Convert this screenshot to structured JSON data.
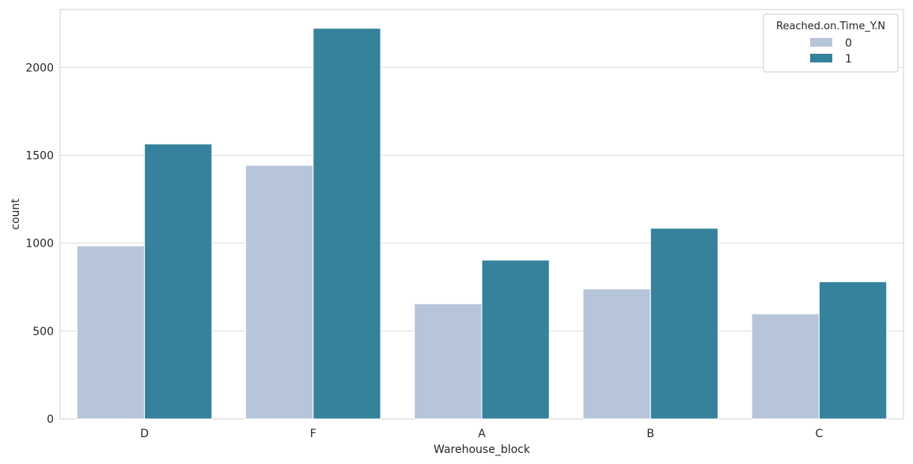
{
  "chart_data": {
    "type": "bar",
    "categories": [
      "D",
      "F",
      "A",
      "B",
      "C"
    ],
    "series": [
      {
        "name": "0",
        "values": [
          985,
          1443,
          655,
          740,
          598
        ],
        "color": "#b7c5da"
      },
      {
        "name": "1",
        "values": [
          1565,
          2223,
          904,
          1085,
          781
        ],
        "color": "#35829c"
      }
    ],
    "title": "",
    "xlabel": "Warehouse_block",
    "ylabel": "count",
    "ylim": [
      0,
      2330
    ],
    "yticks": [
      "0",
      "500",
      "1000",
      "1500",
      "2000"
    ],
    "grid": "horizontal",
    "legend": {
      "title": "Reached.on.Time_Y.N",
      "placement": "top-right"
    }
  }
}
